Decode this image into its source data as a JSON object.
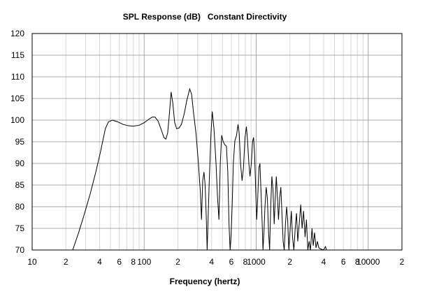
{
  "chart_data": {
    "type": "line",
    "title": "SPL Response (dB)   Constant Directivity",
    "xlabel": "Frequency (hertz)",
    "ylabel": "",
    "x_scale": "log",
    "xlim": [
      10,
      20000
    ],
    "ylim": [
      70,
      120
    ],
    "grid": true,
    "x_tick_labels": [
      {
        "value": 10,
        "label": "10"
      },
      {
        "value": 20,
        "label": "2"
      },
      {
        "value": 40,
        "label": "4"
      },
      {
        "value": 60,
        "label": "6"
      },
      {
        "value": 80,
        "label": "8"
      },
      {
        "value": 100,
        "label": "100"
      },
      {
        "value": 200,
        "label": "2"
      },
      {
        "value": 400,
        "label": "4"
      },
      {
        "value": 600,
        "label": "6"
      },
      {
        "value": 800,
        "label": "8"
      },
      {
        "value": 1000,
        "label": "1000"
      },
      {
        "value": 2000,
        "label": "2"
      },
      {
        "value": 4000,
        "label": "4"
      },
      {
        "value": 6000,
        "label": "6"
      },
      {
        "value": 8000,
        "label": "8"
      },
      {
        "value": 10000,
        "label": "10000"
      },
      {
        "value": 20000,
        "label": "2"
      }
    ],
    "y_ticks": [
      70,
      75,
      80,
      85,
      90,
      95,
      100,
      105,
      110,
      115,
      120
    ],
    "series": [
      {
        "color": "#000000",
        "points": [
          [
            23,
            70
          ],
          [
            26,
            74
          ],
          [
            29,
            78
          ],
          [
            33,
            83
          ],
          [
            37,
            88
          ],
          [
            41,
            93
          ],
          [
            45,
            98
          ],
          [
            48,
            99.6
          ],
          [
            52,
            100
          ],
          [
            58,
            99.6
          ],
          [
            65,
            99
          ],
          [
            72,
            98.7
          ],
          [
            80,
            98.6
          ],
          [
            90,
            98.8
          ],
          [
            100,
            99.4
          ],
          [
            110,
            100.2
          ],
          [
            118,
            100.7
          ],
          [
            125,
            100.7
          ],
          [
            133,
            99.8
          ],
          [
            142,
            97.8
          ],
          [
            150,
            96
          ],
          [
            156,
            95.6
          ],
          [
            162,
            97
          ],
          [
            168,
            101.5
          ],
          [
            174,
            106.5
          ],
          [
            180,
            104
          ],
          [
            187,
            99.5
          ],
          [
            195,
            98
          ],
          [
            205,
            98.2
          ],
          [
            215,
            99
          ],
          [
            228,
            101.5
          ],
          [
            240,
            104.5
          ],
          [
            255,
            107.2
          ],
          [
            265,
            106
          ],
          [
            275,
            102
          ],
          [
            290,
            97
          ],
          [
            305,
            90
          ],
          [
            318,
            83
          ],
          [
            325,
            77
          ],
          [
            333,
            86
          ],
          [
            342,
            88
          ],
          [
            350,
            85
          ],
          [
            358,
            78
          ],
          [
            365,
            70
          ],
          [
            380,
            85
          ],
          [
            395,
            97
          ],
          [
            405,
            102
          ],
          [
            420,
            98
          ],
          [
            438,
            90
          ],
          [
            452,
            82
          ],
          [
            465,
            77
          ],
          [
            478,
            90
          ],
          [
            492,
            96.5
          ],
          [
            508,
            95
          ],
          [
            525,
            94.3
          ],
          [
            542,
            94
          ],
          [
            558,
            88
          ],
          [
            572,
            76
          ],
          [
            585,
            70
          ],
          [
            598,
            74
          ],
          [
            610,
            80
          ],
          [
            625,
            90
          ],
          [
            645,
            95.2
          ],
          [
            668,
            96.5
          ],
          [
            688,
            99
          ],
          [
            705,
            97
          ],
          [
            725,
            90
          ],
          [
            748,
            86
          ],
          [
            770,
            89
          ],
          [
            795,
            96
          ],
          [
            818,
            98.5
          ],
          [
            838,
            95
          ],
          [
            860,
            90
          ],
          [
            880,
            87
          ],
          [
            905,
            90
          ],
          [
            928,
            95
          ],
          [
            948,
            96
          ],
          [
            968,
            92
          ],
          [
            990,
            84
          ],
          [
            1010,
            77
          ],
          [
            1032,
            82
          ],
          [
            1058,
            89
          ],
          [
            1080,
            90
          ],
          [
            1102,
            84
          ],
          [
            1128,
            77
          ],
          [
            1150,
            70
          ],
          [
            1172,
            74
          ],
          [
            1198,
            80
          ],
          [
            1228,
            84.5
          ],
          [
            1258,
            82
          ],
          [
            1290,
            74
          ],
          [
            1318,
            70
          ],
          [
            1348,
            80
          ],
          [
            1380,
            87
          ],
          [
            1412,
            84
          ],
          [
            1448,
            76
          ],
          [
            1480,
            82
          ],
          [
            1512,
            87
          ],
          [
            1548,
            82
          ],
          [
            1582,
            77
          ],
          [
            1620,
            82
          ],
          [
            1660,
            84.5
          ],
          [
            1700,
            78
          ],
          [
            1740,
            72
          ],
          [
            1780,
            70
          ],
          [
            1825,
            76
          ],
          [
            1870,
            80
          ],
          [
            1910,
            77
          ],
          [
            1955,
            70
          ],
          [
            2000,
            74
          ],
          [
            2060,
            79
          ],
          [
            2110,
            73
          ],
          [
            2170,
            70
          ],
          [
            2230,
            75
          ],
          [
            2290,
            78.5
          ],
          [
            2350,
            72
          ],
          [
            2420,
            76
          ],
          [
            2500,
            80.5
          ],
          [
            2570,
            75
          ],
          [
            2650,
            79
          ],
          [
            2730,
            73
          ],
          [
            2810,
            77
          ],
          [
            2890,
            70
          ],
          [
            2970,
            72
          ],
          [
            3050,
            70
          ],
          [
            3150,
            75
          ],
          [
            3230,
            71
          ],
          [
            3320,
            74
          ],
          [
            3420,
            70.5
          ],
          [
            3520,
            72
          ],
          [
            3620,
            70.5
          ],
          [
            3800,
            70.2
          ],
          [
            4000,
            70
          ],
          [
            4150,
            70.8
          ],
          [
            4250,
            70
          ]
        ]
      }
    ]
  }
}
